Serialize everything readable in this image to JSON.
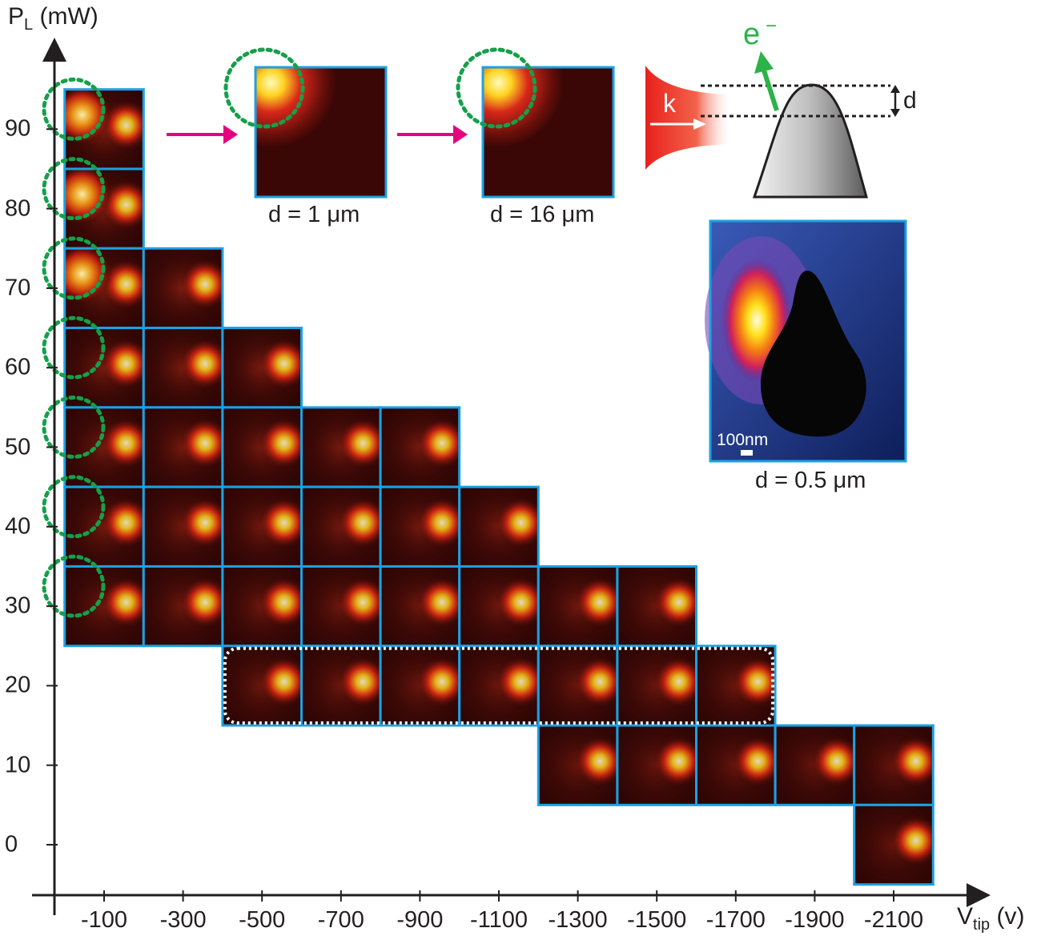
{
  "axes": {
    "y_label_main": "P",
    "y_label_sub": "L",
    "y_label_unit": "(mW)",
    "x_label_main": "V",
    "x_label_sub": "tip",
    "x_label_unit": "(v)",
    "x_ticks": [
      "-100",
      "-300",
      "-500",
      "-700",
      "-900",
      "-1100",
      "-1300",
      "-1500",
      "-1700",
      "-1900",
      "-2100"
    ],
    "y_ticks": [
      "0",
      "10",
      "20",
      "30",
      "40",
      "50",
      "60",
      "70",
      "80",
      "90"
    ]
  },
  "grid": {
    "x_values": [
      -100,
      -300,
      -500,
      -700,
      -900,
      -1100,
      -1300,
      -1500,
      -1700,
      -1900,
      -2100
    ],
    "rows": [
      {
        "power": 90,
        "voltages": [
          -100
        ]
      },
      {
        "power": 80,
        "voltages": [
          -100
        ]
      },
      {
        "power": 70,
        "voltages": [
          -100,
          -300
        ]
      },
      {
        "power": 60,
        "voltages": [
          -100,
          -300,
          -500
        ]
      },
      {
        "power": 50,
        "voltages": [
          -100,
          -300,
          -500,
          -700,
          -900
        ]
      },
      {
        "power": 40,
        "voltages": [
          -100,
          -300,
          -500,
          -700,
          -900,
          -1100
        ]
      },
      {
        "power": 30,
        "voltages": [
          -100,
          -300,
          -500,
          -700,
          -900,
          -1100,
          -1300,
          -1500
        ]
      },
      {
        "power": 20,
        "voltages": [
          -500,
          -700,
          -900,
          -1100,
          -1300,
          -1500,
          -1700
        ]
      },
      {
        "power": 10,
        "voltages": [
          -1300,
          -1500,
          -1700,
          -1900,
          -2100
        ]
      },
      {
        "power": 0,
        "voltages": [
          -2100
        ]
      }
    ],
    "highlighted_row_power": 20,
    "circled_column": -100
  },
  "insets": {
    "zoom1_caption": "d = 1 μm",
    "zoom2_caption": "d = 16 μm",
    "sim_caption": "d = 0.5 μm",
    "scalebar_label": "100nm",
    "laser_label": "k",
    "electron_label": "e",
    "electron_sup": "−",
    "distance_label": "d"
  },
  "colors": {
    "frame": "#1ba1e2",
    "circle": "#15a04a",
    "arrow": "#e6007e",
    "laser": "#e8201c",
    "electron": "#2bb34a"
  }
}
